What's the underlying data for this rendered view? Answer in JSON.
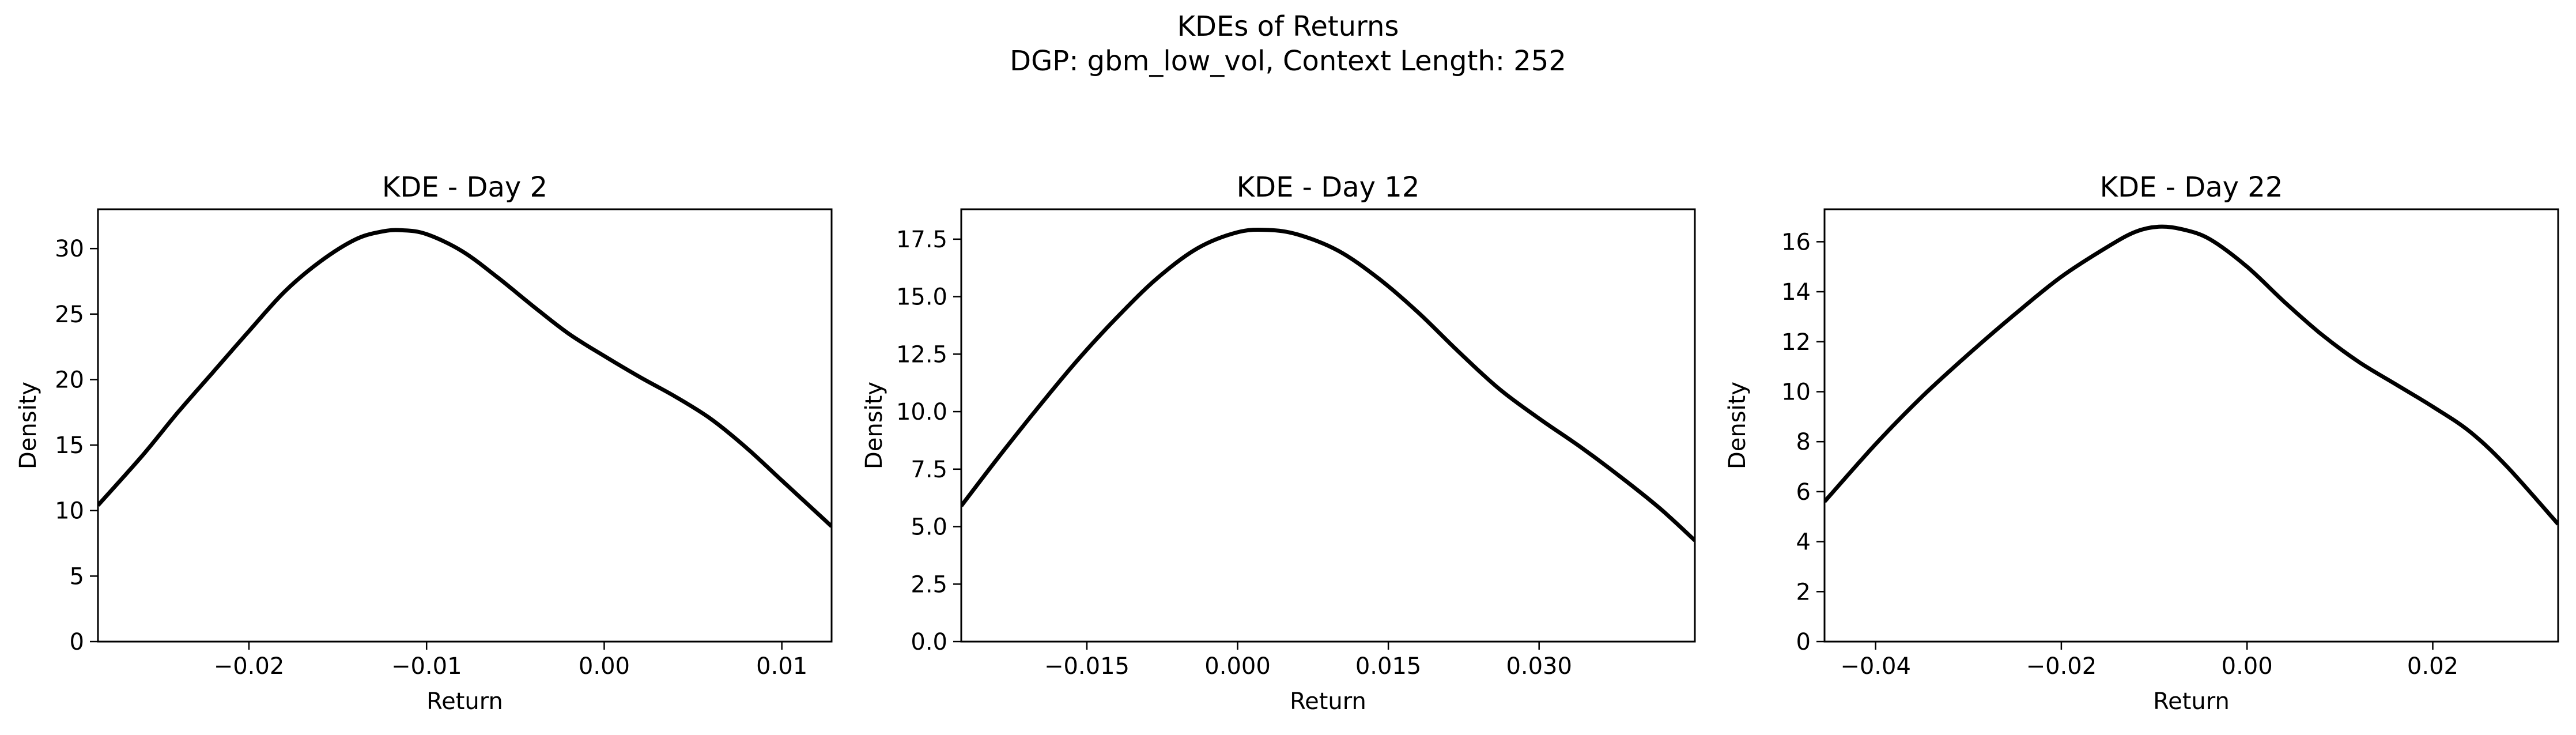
{
  "suptitle_line1": "KDEs of Returns",
  "suptitle_line2": "DGP: gbm_low_vol, Context Length: 252",
  "line_color": "#000000",
  "chart_data": [
    {
      "type": "line",
      "title": "KDE - Day 2",
      "xlabel": "Return",
      "ylabel": "Density",
      "xlim": [
        -0.0285,
        0.0128
      ],
      "ylim": [
        0,
        33
      ],
      "xticks": [
        -0.02,
        -0.01,
        0.0,
        0.01
      ],
      "xtick_labels": [
        "−0.02",
        "−0.01",
        "0.00",
        "0.01"
      ],
      "yticks": [
        0,
        5,
        10,
        15,
        20,
        25,
        30
      ],
      "ytick_labels": [
        "0",
        "5",
        "10",
        "15",
        "20",
        "25",
        "30"
      ],
      "grid": false,
      "series": [
        {
          "x": [
            -0.0285,
            -0.026,
            -0.024,
            -0.022,
            -0.02,
            -0.018,
            -0.016,
            -0.014,
            -0.0125,
            -0.0114,
            -0.01,
            -0.008,
            -0.006,
            -0.004,
            -0.002,
            0.0,
            0.002,
            0.004,
            0.006,
            0.008,
            0.01,
            0.0128
          ],
          "y": [
            10.4,
            14.2,
            17.5,
            20.6,
            23.7,
            26.7,
            29.0,
            30.7,
            31.3,
            31.4,
            31.1,
            29.8,
            27.8,
            25.6,
            23.5,
            21.8,
            20.2,
            18.7,
            17.0,
            14.8,
            12.3,
            8.8
          ]
        }
      ]
    },
    {
      "type": "line",
      "title": "KDE - Day 12",
      "xlabel": "Return",
      "ylabel": "Density",
      "xlim": [
        -0.0275,
        0.0455
      ],
      "ylim": [
        0,
        18.8
      ],
      "xticks": [
        -0.015,
        0.0,
        0.015,
        0.03
      ],
      "xtick_labels": [
        "−0.015",
        "0.000",
        "0.015",
        "0.030"
      ],
      "yticks": [
        0,
        2.5,
        5,
        7.5,
        10,
        12.5,
        15,
        17.5
      ],
      "ytick_labels": [
        "0.0",
        "2.5",
        "5.0",
        "7.5",
        "10.0",
        "12.5",
        "15.0",
        "17.5"
      ],
      "grid": false,
      "series": [
        {
          "x": [
            -0.0275,
            -0.024,
            -0.02,
            -0.016,
            -0.012,
            -0.008,
            -0.004,
            0.0,
            0.003,
            0.006,
            0.01,
            0.014,
            0.018,
            0.022,
            0.026,
            0.03,
            0.034,
            0.038,
            0.042,
            0.0455
          ],
          "y": [
            5.9,
            7.9,
            10.1,
            12.2,
            14.1,
            15.8,
            17.1,
            17.8,
            17.9,
            17.7,
            17.0,
            15.8,
            14.3,
            12.6,
            11.0,
            9.7,
            8.5,
            7.2,
            5.8,
            4.4
          ]
        }
      ]
    },
    {
      "type": "line",
      "title": "KDE - Day 22",
      "xlabel": "Return",
      "ylabel": "Density",
      "xlim": [
        -0.0455,
        0.0335
      ],
      "ylim": [
        0,
        17.3
      ],
      "xticks": [
        -0.04,
        -0.02,
        0.0,
        0.02
      ],
      "xtick_labels": [
        "−0.04",
        "−0.02",
        "0.00",
        "0.02"
      ],
      "yticks": [
        0,
        2,
        4,
        6,
        8,
        10,
        12,
        14,
        16
      ],
      "ytick_labels": [
        "0",
        "2",
        "4",
        "6",
        "8",
        "10",
        "12",
        "14",
        "16"
      ],
      "grid": false,
      "series": [
        {
          "x": [
            -0.0455,
            -0.04,
            -0.035,
            -0.03,
            -0.025,
            -0.02,
            -0.015,
            -0.012,
            -0.0095,
            -0.007,
            -0.004,
            0.0,
            0.004,
            0.008,
            0.012,
            0.016,
            0.02,
            0.024,
            0.028,
            0.0335
          ],
          "y": [
            5.6,
            7.9,
            9.8,
            11.5,
            13.1,
            14.6,
            15.8,
            16.4,
            16.6,
            16.5,
            16.1,
            15.0,
            13.6,
            12.3,
            11.2,
            10.3,
            9.4,
            8.4,
            7.0,
            4.7
          ]
        }
      ]
    }
  ]
}
